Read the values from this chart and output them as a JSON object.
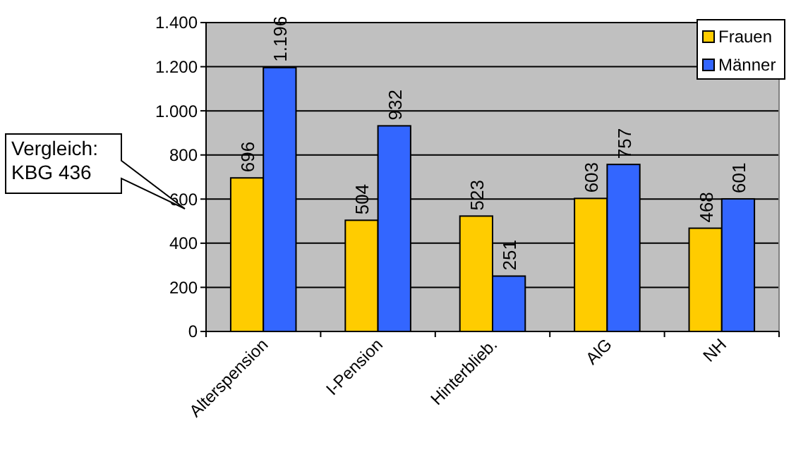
{
  "chart_data": {
    "type": "bar",
    "categories": [
      "Alterspension",
      "I-Pension",
      "Hinterblieb.",
      "AlG",
      "NH"
    ],
    "series": [
      {
        "name": "Frauen",
        "color": "#ffcc00",
        "values": [
          696,
          504,
          523,
          603,
          468
        ],
        "value_labels": [
          "696",
          "504",
          "523",
          "603",
          "468"
        ]
      },
      {
        "name": "Männer",
        "color": "#3366ff",
        "values": [
          1196,
          932,
          251,
          757,
          601
        ],
        "value_labels": [
          "1.196",
          "932",
          "251",
          "757",
          "601"
        ]
      }
    ],
    "ylim": [
      0,
      1400
    ],
    "yticks": [
      0,
      {
        "value": 200,
        "label": "200"
      },
      {
        "value": 400,
        "label": "400"
      },
      {
        "value": 600,
        "label": "600"
      },
      {
        "value": 800,
        "label": "800"
      },
      {
        "value": 1000,
        "label": "1.000"
      },
      {
        "value": 1200,
        "label": "1.200"
      },
      {
        "value": 1400,
        "label": "1.400"
      }
    ],
    "grid": "y",
    "legend": "top right",
    "annotations": [
      "Vergleich: KBG 436"
    ]
  }
}
